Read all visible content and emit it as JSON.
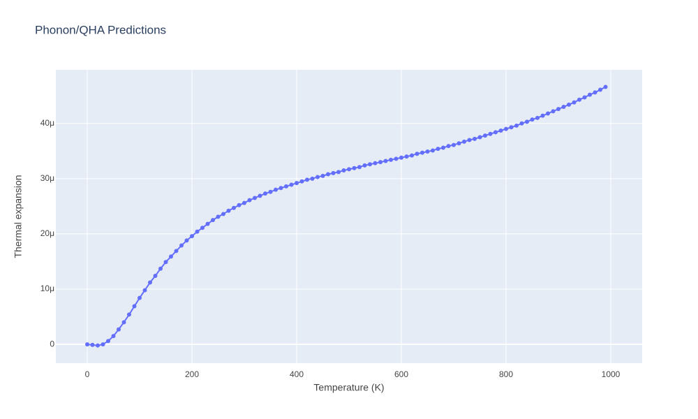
{
  "chart_data": {
    "type": "line",
    "title": "Phonon/QHA Predictions",
    "xlabel": "Temperature (K)",
    "ylabel": "Thermal expansion",
    "x": [
      0,
      10,
      20,
      30,
      40,
      50,
      60,
      70,
      80,
      90,
      100,
      110,
      120,
      130,
      140,
      150,
      160,
      170,
      180,
      190,
      200,
      210,
      220,
      230,
      240,
      250,
      260,
      270,
      280,
      290,
      300,
      310,
      320,
      330,
      340,
      350,
      360,
      370,
      380,
      390,
      400,
      410,
      420,
      430,
      440,
      450,
      460,
      470,
      480,
      490,
      500,
      510,
      520,
      530,
      540,
      550,
      560,
      570,
      580,
      590,
      600,
      610,
      620,
      630,
      640,
      650,
      660,
      670,
      680,
      690,
      700,
      710,
      720,
      730,
      740,
      750,
      760,
      770,
      780,
      790,
      800,
      810,
      820,
      830,
      840,
      850,
      860,
      870,
      880,
      890,
      900,
      910,
      920,
      930,
      940,
      950,
      960,
      970,
      980,
      990
    ],
    "series": [
      {
        "color": "#636efa",
        "values": [
          0,
          -1e-07,
          -2e-07,
          0,
          6e-07,
          1.5e-06,
          2.7e-06,
          4e-06,
          5.4e-06,
          6.9e-06,
          8.4e-06,
          9.8e-06,
          1.12e-05,
          1.24e-05,
          1.37e-05,
          1.49e-05,
          1.59e-05,
          1.69e-05,
          1.79e-05,
          1.88e-05,
          1.96e-05,
          2.04e-05,
          2.11e-05,
          2.18e-05,
          2.25e-05,
          2.31e-05,
          2.36e-05,
          2.42e-05,
          2.47e-05,
          2.52e-05,
          2.56e-05,
          2.61e-05,
          2.65e-05,
          2.69e-05,
          2.73e-05,
          2.76e-05,
          2.8e-05,
          2.83e-05,
          2.86e-05,
          2.89e-05,
          2.92e-05,
          2.95e-05,
          2.98e-05,
          3e-05,
          3.03e-05,
          3.05e-05,
          3.08e-05,
          3.1e-05,
          3.12e-05,
          3.15e-05,
          3.17e-05,
          3.19e-05,
          3.21e-05,
          3.24e-05,
          3.26e-05,
          3.28e-05,
          3.3e-05,
          3.32e-05,
          3.34e-05,
          3.36e-05,
          3.38e-05,
          3.4e-05,
          3.42e-05,
          3.45e-05,
          3.47e-05,
          3.49e-05,
          3.51e-05,
          3.54e-05,
          3.56e-05,
          3.59e-05,
          3.61e-05,
          3.64e-05,
          3.67e-05,
          3.7e-05,
          3.72e-05,
          3.75e-05,
          3.78e-05,
          3.81e-05,
          3.84e-05,
          3.87e-05,
          3.9e-05,
          3.93e-05,
          3.96e-05,
          4e-05,
          4.03e-05,
          4.07e-05,
          4.1e-05,
          4.14e-05,
          4.18e-05,
          4.22e-05,
          4.26e-05,
          4.3e-05,
          4.34e-05,
          4.38e-05,
          4.43e-05,
          4.47e-05,
          4.52e-05,
          4.56e-05,
          4.61e-05,
          4.66e-05
        ]
      }
    ],
    "xlim": [
      -60,
      1060
    ],
    "xticks": [
      0,
      200,
      400,
      600,
      800,
      1000
    ],
    "ylim": [
      -3.4e-06,
      4.97e-05
    ],
    "yticks": [
      0,
      {
        "value": 1e-05,
        "label": "10μ"
      },
      {
        "value": 2e-05,
        "label": "20μ"
      },
      {
        "value": 3e-05,
        "label": "30μ"
      },
      {
        "value": 4e-05,
        "label": "40μ"
      }
    ],
    "grid": true
  }
}
